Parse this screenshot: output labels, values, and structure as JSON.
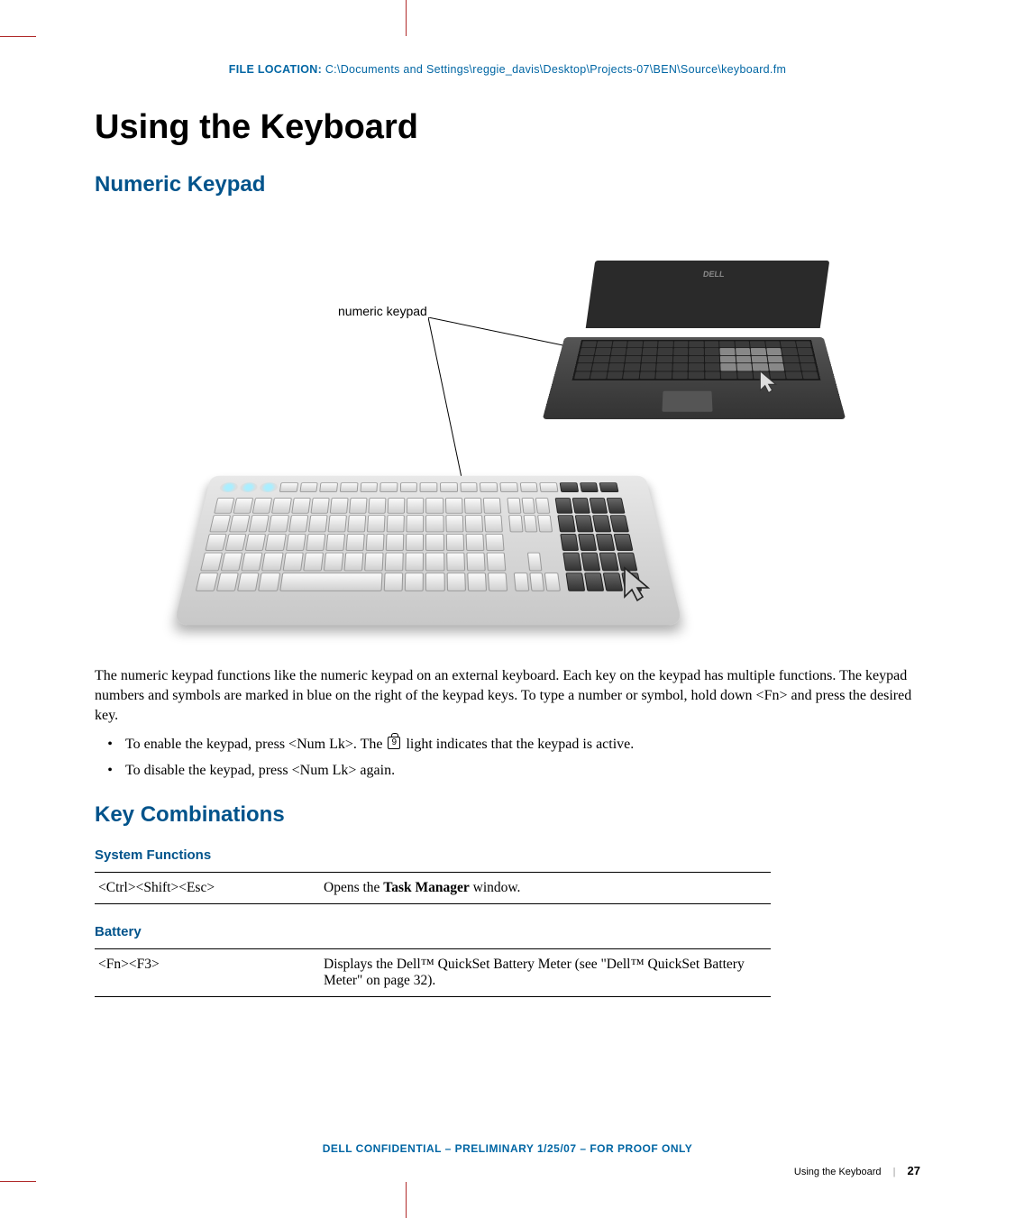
{
  "file_location": {
    "label": "FILE LOCATION:",
    "path": "C:\\Documents and Settings\\reggie_davis\\Desktop\\Projects-07\\BEN\\Source\\keyboard.fm"
  },
  "title": "Using the Keyboard",
  "section_numeric": "Numeric Keypad",
  "callout_label": "numeric keypad",
  "laptop_brand": "DELL",
  "body_para": "The numeric keypad functions like the numeric keypad on an external keyboard. Each key on the keypad has multiple functions. The keypad numbers and symbols are marked in blue on the right of the keypad keys. To type a number or symbol, hold down <Fn> and press the desired key.",
  "bullet1_pre": "To enable the keypad, press <Num Lk>. The ",
  "bullet1_post": " light indicates that the keypad is active.",
  "bullet2": "To disable the keypad, press <Num Lk> again.",
  "section_keycombo": "Key Combinations",
  "sub_sysfunc": "System Functions",
  "row_sys": {
    "keys": "<Ctrl><Shift><Esc>",
    "desc_pre": "Opens the ",
    "desc_bold": "Task Manager",
    "desc_post": " window."
  },
  "sub_battery": "Battery",
  "row_batt": {
    "keys": "<Fn><F3>",
    "desc": "Displays the Dell™ QuickSet Battery Meter (see \"Dell™ QuickSet Battery Meter\" on page 32)."
  },
  "footer_conf": "DELL CONFIDENTIAL – PRELIMINARY 1/25/07 – FOR PROOF ONLY",
  "footer_title": "Using the Keyboard",
  "footer_page": "27",
  "colors": {
    "heading_blue": "#00538b",
    "meta_blue": "#0066a4",
    "crop_red": "#b02a2a",
    "text": "#000000",
    "bg": "#ffffff"
  }
}
